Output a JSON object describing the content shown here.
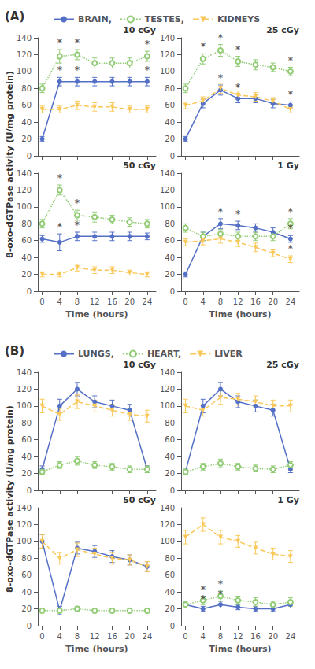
{
  "chart_data": [
    {
      "type": "line",
      "panel": "(A)",
      "title": "10 cGy",
      "ylabel": "8-oxo-dGTPase activity (U/mg protein)",
      "x": [
        0,
        4,
        8,
        12,
        16,
        20,
        24
      ],
      "xlim": [
        -1,
        26
      ],
      "xticks": [
        0,
        4,
        8,
        12,
        16,
        20,
        24
      ],
      "ylim": [
        0,
        140
      ],
      "yticks": [
        0,
        20,
        40,
        60,
        80,
        100,
        120,
        140
      ],
      "grid": false,
      "tick_labels": "y",
      "series": [
        {
          "name": "BRAIN,",
          "marker": "circle",
          "line_style": "solid",
          "values": [
            20,
            88,
            88,
            88,
            88,
            88,
            88
          ],
          "errors": [
            3,
            5,
            5,
            5,
            5,
            5,
            5
          ]
        },
        {
          "name": "TESTES,",
          "marker": "hollow_circle",
          "line_style": "dotted",
          "values": [
            80,
            118,
            120,
            110,
            110,
            110,
            118
          ],
          "errors": [
            5,
            8,
            6,
            6,
            6,
            6,
            6
          ]
        },
        {
          "name": "KIDNEYS",
          "marker": "triangle_down",
          "line_style": "dashed",
          "values": [
            55,
            55,
            60,
            58,
            58,
            55,
            55
          ],
          "errors": [
            4,
            4,
            5,
            5,
            5,
            4,
            4
          ]
        }
      ],
      "annotations": [
        {
          "series": "BRAIN,",
          "x": 4,
          "text": "*"
        },
        {
          "series": "BRAIN,",
          "x": 8,
          "text": "*"
        },
        {
          "series": "BRAIN,",
          "x": 24,
          "text": "*"
        },
        {
          "series": "TESTES,",
          "x": 4,
          "text": "*"
        },
        {
          "series": "TESTES,",
          "x": 8,
          "text": "*"
        },
        {
          "series": "TESTES,",
          "x": 24,
          "text": "*"
        }
      ]
    },
    {
      "type": "line",
      "panel": "(A)",
      "title": "25 cGy",
      "x": [
        0,
        4,
        8,
        12,
        16,
        20,
        24
      ],
      "xlim": [
        -1,
        26
      ],
      "xticks": [
        0,
        4,
        8,
        12,
        16,
        20,
        24
      ],
      "ylim": [
        0,
        140
      ],
      "yticks": [
        0,
        20,
        40,
        60,
        80,
        100,
        120,
        140
      ],
      "grid": false,
      "tick_labels": "y",
      "series": [
        {
          "name": "BRAIN,",
          "marker": "circle",
          "line_style": "solid",
          "values": [
            20,
            62,
            78,
            68,
            68,
            62,
            60
          ],
          "errors": [
            3,
            5,
            6,
            5,
            5,
            5,
            4
          ]
        },
        {
          "name": "TESTES,",
          "marker": "hollow_circle",
          "line_style": "dotted",
          "values": [
            80,
            115,
            125,
            112,
            108,
            105,
            100
          ],
          "errors": [
            5,
            6,
            7,
            6,
            6,
            5,
            5
          ]
        },
        {
          "name": "KIDNEYS",
          "marker": "triangle_down",
          "line_style": "dashed",
          "values": [
            60,
            65,
            80,
            72,
            70,
            65,
            55
          ],
          "errors": [
            4,
            5,
            6,
            5,
            5,
            4,
            4
          ]
        }
      ],
      "annotations": [
        {
          "series": "BRAIN,",
          "x": 8,
          "text": "*"
        },
        {
          "series": "BRAIN,",
          "x": 12,
          "text": "*"
        },
        {
          "series": "BRAIN,",
          "x": 24,
          "text": "*"
        },
        {
          "series": "TESTES,",
          "x": 4,
          "text": "*"
        },
        {
          "series": "TESTES,",
          "x": 8,
          "text": "*"
        },
        {
          "series": "TESTES,",
          "x": 12,
          "text": "*"
        },
        {
          "series": "TESTES,",
          "x": 24,
          "text": "*"
        }
      ]
    },
    {
      "type": "line",
      "panel": "(A)",
      "title": "50 cGy",
      "xlabel": "Time (hours)",
      "x": [
        0,
        4,
        8,
        12,
        16,
        20,
        24
      ],
      "xlim": [
        -1,
        26
      ],
      "xticks": [
        0,
        4,
        8,
        12,
        16,
        20,
        24
      ],
      "ylim": [
        0,
        140
      ],
      "yticks": [
        0,
        20,
        40,
        60,
        80,
        100,
        120,
        140
      ],
      "grid": false,
      "series": [
        {
          "name": "BRAIN,",
          "marker": "circle",
          "line_style": "solid",
          "values": [
            62,
            58,
            65,
            65,
            65,
            65,
            65
          ],
          "errors": [
            4,
            10,
            5,
            5,
            5,
            5,
            4
          ]
        },
        {
          "name": "TESTES,",
          "marker": "hollow_circle",
          "line_style": "dotted",
          "values": [
            80,
            120,
            90,
            88,
            85,
            82,
            80
          ],
          "errors": [
            5,
            6,
            6,
            6,
            5,
            5,
            5
          ]
        },
        {
          "name": "KIDNEYS",
          "marker": "triangle_down",
          "line_style": "dashed",
          "values": [
            20,
            20,
            28,
            25,
            25,
            22,
            20
          ],
          "errors": [
            3,
            3,
            4,
            4,
            4,
            3,
            3
          ]
        }
      ],
      "annotations": [
        {
          "series": "BRAIN,",
          "x": 4,
          "text": "*"
        },
        {
          "series": "BRAIN,",
          "x": 8,
          "text": "*"
        },
        {
          "series": "TESTES,",
          "x": 4,
          "text": "*"
        },
        {
          "series": "TESTES,",
          "x": 8,
          "text": "*"
        }
      ]
    },
    {
      "type": "line",
      "panel": "(A)",
      "title": "1 Gy",
      "xlabel": "Time (hours)",
      "x": [
        0,
        4,
        8,
        12,
        16,
        20,
        24
      ],
      "xlim": [
        -1,
        26
      ],
      "xticks": [
        0,
        4,
        8,
        12,
        16,
        20,
        24
      ],
      "ylim": [
        0,
        140
      ],
      "yticks": [
        0,
        20,
        40,
        60,
        80,
        100,
        120,
        140
      ],
      "grid": false,
      "series": [
        {
          "name": "BRAIN,",
          "marker": "circle",
          "line_style": "solid",
          "values": [
            20,
            65,
            80,
            78,
            75,
            70,
            62
          ],
          "errors": [
            3,
            5,
            6,
            5,
            5,
            5,
            4
          ]
        },
        {
          "name": "TESTES,",
          "marker": "hollow_circle",
          "line_style": "dotted",
          "values": [
            75,
            65,
            68,
            65,
            65,
            65,
            80
          ],
          "errors": [
            5,
            5,
            5,
            5,
            5,
            5,
            6
          ]
        },
        {
          "name": "KIDNEYS",
          "marker": "triangle_down",
          "line_style": "dashed",
          "values": [
            58,
            60,
            62,
            58,
            52,
            45,
            38
          ],
          "errors": [
            4,
            5,
            5,
            5,
            5,
            4,
            4
          ]
        }
      ],
      "annotations": [
        {
          "series": "BRAIN,",
          "x": 8,
          "text": "*"
        },
        {
          "series": "BRAIN,",
          "x": 12,
          "text": "*"
        },
        {
          "series": "BRAIN,",
          "x": 24,
          "text": "*"
        },
        {
          "series": "TESTES,",
          "x": 24,
          "text": "*"
        },
        {
          "series": "KIDNEYS",
          "x": 24,
          "text": "*"
        }
      ]
    },
    {
      "type": "line",
      "panel": "(B)",
      "title": "10 cGy",
      "ylabel": "8-oxo-dGTPase activity (U/mg protein)",
      "x": [
        0,
        4,
        8,
        12,
        16,
        20,
        24
      ],
      "xlim": [
        -1,
        26
      ],
      "xticks": [
        0,
        4,
        8,
        12,
        16,
        20,
        24
      ],
      "ylim": [
        0,
        140
      ],
      "yticks": [
        0,
        20,
        40,
        60,
        80,
        100,
        120,
        140
      ],
      "grid": false,
      "tick_labels": "y",
      "series": [
        {
          "name": "LUNGS,",
          "marker": "circle",
          "line_style": "solid",
          "values": [
            25,
            100,
            120,
            105,
            100,
            95,
            25
          ],
          "errors": [
            4,
            8,
            8,
            7,
            7,
            7,
            4
          ]
        },
        {
          "name": "HEART,",
          "marker": "hollow_circle",
          "line_style": "dotted",
          "values": [
            22,
            30,
            35,
            30,
            28,
            25,
            25
          ],
          "errors": [
            3,
            4,
            5,
            4,
            4,
            4,
            4
          ]
        },
        {
          "name": "LIVER",
          "marker": "triangle_down",
          "line_style": "dashed",
          "values": [
            100,
            90,
            105,
            100,
            95,
            90,
            88
          ],
          "errors": [
            8,
            7,
            8,
            7,
            7,
            7,
            7
          ]
        }
      ]
    },
    {
      "type": "line",
      "panel": "(B)",
      "title": "25 cGy",
      "x": [
        0,
        4,
        8,
        12,
        16,
        20,
        24
      ],
      "xlim": [
        -1,
        26
      ],
      "xticks": [
        0,
        4,
        8,
        12,
        16,
        20,
        24
      ],
      "ylim": [
        0,
        140
      ],
      "yticks": [
        0,
        20,
        40,
        60,
        80,
        100,
        120,
        140
      ],
      "grid": false,
      "tick_labels": "y",
      "series": [
        {
          "name": "LUNGS,",
          "marker": "circle",
          "line_style": "solid",
          "values": [
            22,
            100,
            120,
            105,
            100,
            95,
            25
          ],
          "errors": [
            3,
            8,
            8,
            7,
            7,
            7,
            4
          ]
        },
        {
          "name": "HEART,",
          "marker": "hollow_circle",
          "line_style": "dotted",
          "values": [
            22,
            28,
            32,
            28,
            26,
            25,
            30
          ],
          "errors": [
            3,
            4,
            5,
            4,
            4,
            4,
            4
          ]
        },
        {
          "name": "LIVER",
          "marker": "triangle_down",
          "line_style": "dashed",
          "values": [
            100,
            95,
            110,
            108,
            105,
            100,
            100
          ],
          "errors": [
            8,
            7,
            8,
            7,
            7,
            7,
            7
          ]
        }
      ]
    },
    {
      "type": "line",
      "panel": "(B)",
      "title": "50 cGy",
      "xlabel": "Time (hours)",
      "x": [
        0,
        4,
        8,
        12,
        16,
        20,
        24
      ],
      "xlim": [
        -1,
        26
      ],
      "xticks": [
        0,
        4,
        8,
        12,
        16,
        20,
        24
      ],
      "ylim": [
        0,
        140
      ],
      "yticks": [
        0,
        20,
        40,
        60,
        80,
        100,
        120,
        140
      ],
      "grid": false,
      "series": [
        {
          "name": "LUNGS,",
          "marker": "circle",
          "line_style": "solid",
          "values": [
            100,
            18,
            92,
            88,
            82,
            78,
            70
          ],
          "errors": [
            8,
            5,
            7,
            7,
            7,
            6,
            6
          ]
        },
        {
          "name": "HEART,",
          "marker": "hollow_circle",
          "line_style": "dotted",
          "values": [
            18,
            18,
            20,
            18,
            18,
            18,
            18
          ],
          "errors": [
            3,
            3,
            3,
            3,
            3,
            3,
            3
          ]
        },
        {
          "name": "LIVER",
          "marker": "triangle_down",
          "line_style": "dashed",
          "values": [
            100,
            80,
            90,
            85,
            80,
            78,
            70
          ],
          "errors": [
            8,
            7,
            8,
            7,
            7,
            6,
            6
          ]
        }
      ]
    },
    {
      "type": "line",
      "panel": "(B)",
      "title": "1 Gy",
      "xlabel": "Time (hours)",
      "x": [
        0,
        4,
        8,
        12,
        16,
        20,
        24
      ],
      "xlim": [
        -1,
        26
      ],
      "xticks": [
        0,
        4,
        8,
        12,
        16,
        20,
        24
      ],
      "ylim": [
        0,
        140
      ],
      "yticks": [
        0,
        20,
        40,
        60,
        80,
        100,
        120,
        140
      ],
      "grid": false,
      "series": [
        {
          "name": "LUNGS,",
          "marker": "circle",
          "line_style": "solid",
          "values": [
            25,
            20,
            25,
            22,
            20,
            20,
            25
          ],
          "errors": [
            4,
            3,
            4,
            3,
            3,
            3,
            4
          ]
        },
        {
          "name": "HEART,",
          "marker": "hollow_circle",
          "line_style": "dotted",
          "values": [
            25,
            30,
            35,
            30,
            28,
            25,
            28
          ],
          "errors": [
            4,
            5,
            6,
            5,
            5,
            4,
            5
          ]
        },
        {
          "name": "LIVER",
          "marker": "triangle_down",
          "line_style": "dashed",
          "values": [
            105,
            120,
            105,
            100,
            92,
            85,
            82
          ],
          "errors": [
            8,
            8,
            8,
            7,
            7,
            7,
            7
          ]
        }
      ],
      "annotations": [
        {
          "series": "LUNGS,",
          "x": 4,
          "text": "*"
        },
        {
          "series": "LUNGS,",
          "x": 8,
          "text": "*"
        },
        {
          "series": "HEART,",
          "x": 4,
          "text": "*"
        },
        {
          "series": "HEART,",
          "x": 8,
          "text": "*"
        }
      ]
    }
  ]
}
